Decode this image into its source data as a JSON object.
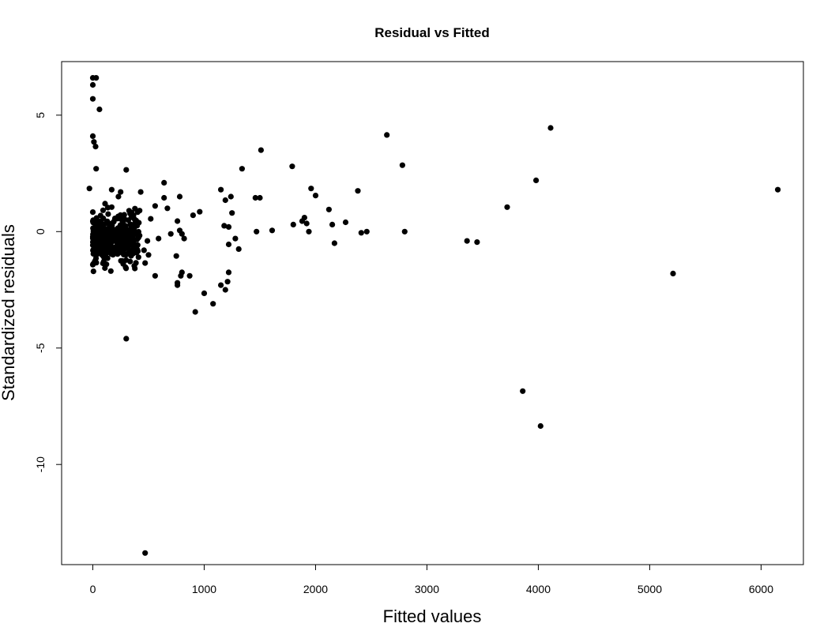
{
  "chart_data": {
    "type": "scatter",
    "title": "Residual vs Fitted",
    "xlabel": "Fitted values",
    "ylabel": "Standardized residuals",
    "xlim": [
      -280,
      6380
    ],
    "ylim": [
      -14.3,
      7.3
    ],
    "x_ticks": [
      0,
      1000,
      2000,
      3000,
      4000,
      5000,
      6000
    ],
    "x_tick_labels": [
      "0",
      "1000",
      "2000",
      "3000",
      "4000",
      "5000",
      "6000"
    ],
    "y_ticks": [
      5,
      0,
      -5,
      -10
    ],
    "y_tick_labels": [
      "5",
      "0",
      "-5",
      "-10"
    ],
    "grid": false,
    "points": [
      {
        "x": 0,
        "y": 6.6
      },
      {
        "x": 30,
        "y": 6.6
      },
      {
        "x": 0,
        "y": 6.3
      },
      {
        "x": 0,
        "y": 5.7
      },
      {
        "x": 60,
        "y": 5.25
      },
      {
        "x": 0,
        "y": 4.1
      },
      {
        "x": 10,
        "y": 3.85
      },
      {
        "x": 25,
        "y": 3.65
      },
      {
        "x": 30,
        "y": 2.7
      },
      {
        "x": -30,
        "y": 1.85
      },
      {
        "x": 300,
        "y": 2.65
      },
      {
        "x": 640,
        "y": 2.1
      },
      {
        "x": 170,
        "y": 1.8
      },
      {
        "x": 250,
        "y": 1.7
      },
      {
        "x": 430,
        "y": 1.7
      },
      {
        "x": 230,
        "y": 1.5
      },
      {
        "x": 640,
        "y": 1.45
      },
      {
        "x": 780,
        "y": 1.5
      },
      {
        "x": 110,
        "y": 1.2
      },
      {
        "x": 170,
        "y": 1.05
      },
      {
        "x": 560,
        "y": 1.1
      },
      {
        "x": 670,
        "y": 1.0
      },
      {
        "x": 960,
        "y": 0.85
      },
      {
        "x": 900,
        "y": 0.7
      },
      {
        "x": 420,
        "y": 0.9
      },
      {
        "x": 760,
        "y": 0.45
      },
      {
        "x": 780,
        "y": 0.05
      },
      {
        "x": 800,
        "y": -0.1
      },
      {
        "x": 820,
        "y": -0.3
      },
      {
        "x": 700,
        "y": -0.1
      },
      {
        "x": 520,
        "y": 0.55
      },
      {
        "x": 490,
        "y": -0.4
      },
      {
        "x": 590,
        "y": -0.3
      },
      {
        "x": 460,
        "y": -0.8
      },
      {
        "x": 500,
        "y": -1.0
      },
      {
        "x": 560,
        "y": -1.9
      },
      {
        "x": 470,
        "y": -1.35
      },
      {
        "x": 750,
        "y": -1.05
      },
      {
        "x": 800,
        "y": -1.75
      },
      {
        "x": 790,
        "y": -1.9
      },
      {
        "x": 870,
        "y": -1.9
      },
      {
        "x": 760,
        "y": -2.2
      },
      {
        "x": 760,
        "y": -2.3
      },
      {
        "x": 1000,
        "y": -2.65
      },
      {
        "x": 920,
        "y": -3.45
      },
      {
        "x": 1080,
        "y": -3.1
      },
      {
        "x": 300,
        "y": -4.6
      },
      {
        "x": 470,
        "y": -13.8
      },
      {
        "x": 1150,
        "y": 1.8
      },
      {
        "x": 1190,
        "y": 1.35
      },
      {
        "x": 1240,
        "y": 1.5
      },
      {
        "x": 1250,
        "y": 0.8
      },
      {
        "x": 1180,
        "y": 0.25
      },
      {
        "x": 1220,
        "y": 0.2
      },
      {
        "x": 1220,
        "y": -0.55
      },
      {
        "x": 1280,
        "y": -0.3
      },
      {
        "x": 1310,
        "y": -0.75
      },
      {
        "x": 1340,
        "y": 2.7
      },
      {
        "x": 1150,
        "y": -2.3
      },
      {
        "x": 1190,
        "y": -2.5
      },
      {
        "x": 1210,
        "y": -2.15
      },
      {
        "x": 1220,
        "y": -1.75
      },
      {
        "x": 1460,
        "y": 1.45
      },
      {
        "x": 1500,
        "y": 1.45
      },
      {
        "x": 1470,
        "y": 0.0
      },
      {
        "x": 1510,
        "y": 3.5
      },
      {
        "x": 1610,
        "y": 0.05
      },
      {
        "x": 1790,
        "y": 2.8
      },
      {
        "x": 1800,
        "y": 0.3
      },
      {
        "x": 1880,
        "y": 0.45
      },
      {
        "x": 1900,
        "y": 0.6
      },
      {
        "x": 1920,
        "y": 0.35
      },
      {
        "x": 1940,
        "y": 0.0
      },
      {
        "x": 1960,
        "y": 1.85
      },
      {
        "x": 2000,
        "y": 1.55
      },
      {
        "x": 2120,
        "y": 0.95
      },
      {
        "x": 2150,
        "y": 0.3
      },
      {
        "x": 2170,
        "y": -0.5
      },
      {
        "x": 2270,
        "y": 0.4
      },
      {
        "x": 2380,
        "y": 1.75
      },
      {
        "x": 2410,
        "y": -0.05
      },
      {
        "x": 2460,
        "y": 0.0
      },
      {
        "x": 2640,
        "y": 4.15
      },
      {
        "x": 2780,
        "y": 2.85
      },
      {
        "x": 2800,
        "y": 0.0
      },
      {
        "x": 3360,
        "y": -0.4
      },
      {
        "x": 3450,
        "y": -0.45
      },
      {
        "x": 3720,
        "y": 1.05
      },
      {
        "x": 3860,
        "y": -6.85
      },
      {
        "x": 3980,
        "y": 2.2
      },
      {
        "x": 4020,
        "y": -8.35
      },
      {
        "x": 4110,
        "y": 4.45
      },
      {
        "x": 5210,
        "y": -1.8
      },
      {
        "x": 6150,
        "y": 1.8
      }
    ],
    "dense_cluster": {
      "x_range": [
        0,
        420
      ],
      "y_range": [
        -1.9,
        1.2
      ],
      "count": 380
    }
  }
}
